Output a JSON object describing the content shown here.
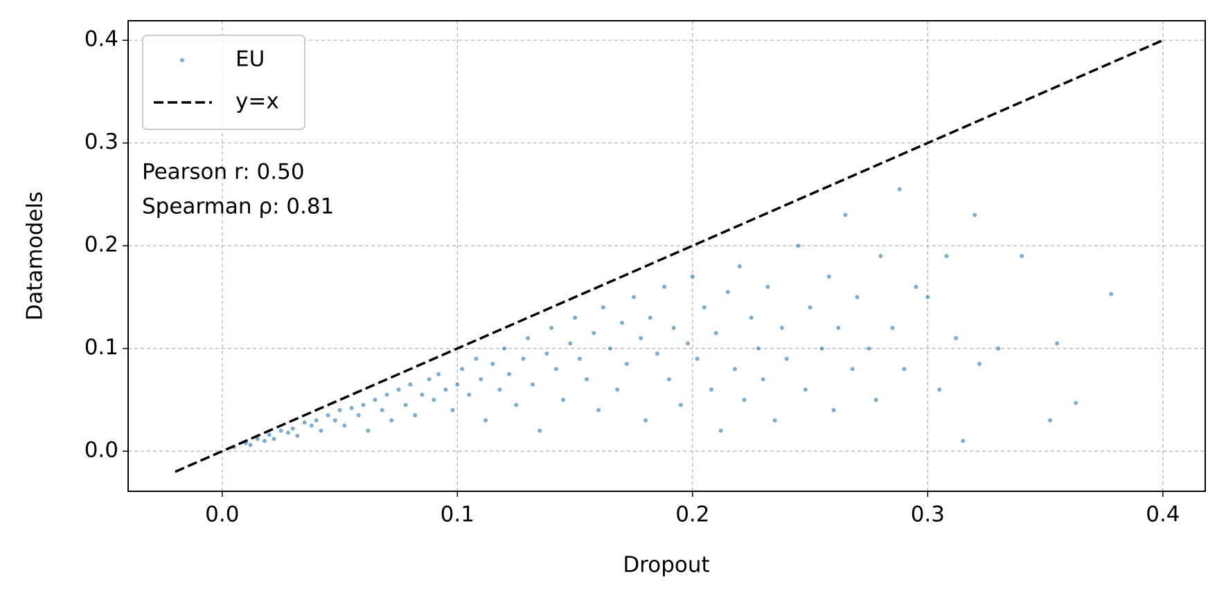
{
  "chart_data": {
    "type": "scatter",
    "x_label": "Dropout",
    "y_label": "Datamodels",
    "annotations": [
      "Pearson r: 0.50",
      "Spearman ρ: 0.81"
    ],
    "legend": "upper left",
    "grid": true,
    "xlim": [
      -0.04,
      0.418
    ],
    "ylim": [
      -0.039,
      0.419
    ],
    "xticks": [
      {
        "value": 0,
        "label": "0.0"
      },
      0.1,
      0.2,
      0.3,
      0.4
    ],
    "yticks": [
      {
        "value": 0,
        "label": "0.0"
      },
      0.1,
      0.2,
      0.3,
      0.4
    ],
    "reference_line": {
      "name": "y=x",
      "color": "#000000",
      "x": [
        -0.02,
        0.4
      ],
      "y": [
        -0.02,
        0.4
      ]
    },
    "series": [
      {
        "name": "EU",
        "color": "#1f77b4",
        "x": [
          0.005,
          0.01,
          0.012,
          0.015,
          0.018,
          0.02,
          0.022,
          0.025,
          0.028,
          0.03,
          0.032,
          0.035,
          0.038,
          0.04,
          0.042,
          0.045,
          0.048,
          0.05,
          0.052,
          0.055,
          0.058,
          0.06,
          0.062,
          0.065,
          0.068,
          0.07,
          0.072,
          0.075,
          0.078,
          0.08,
          0.082,
          0.085,
          0.088,
          0.09,
          0.092,
          0.095,
          0.098,
          0.1,
          0.102,
          0.105,
          0.108,
          0.11,
          0.112,
          0.115,
          0.118,
          0.12,
          0.122,
          0.125,
          0.128,
          0.13,
          0.132,
          0.135,
          0.138,
          0.14,
          0.142,
          0.145,
          0.148,
          0.15,
          0.152,
          0.155,
          0.158,
          0.16,
          0.162,
          0.165,
          0.168,
          0.17,
          0.172,
          0.175,
          0.178,
          0.18,
          0.182,
          0.185,
          0.188,
          0.19,
          0.192,
          0.195,
          0.198,
          0.2,
          0.202,
          0.205,
          0.208,
          0.21,
          0.212,
          0.215,
          0.218,
          0.22,
          0.222,
          0.225,
          0.228,
          0.23,
          0.232,
          0.235,
          0.238,
          0.24,
          0.245,
          0.248,
          0.25,
          0.255,
          0.258,
          0.26,
          0.262,
          0.265,
          0.268,
          0.27,
          0.275,
          0.278,
          0.28,
          0.285,
          0.288,
          0.29,
          0.295,
          0.3,
          0.305,
          0.308,
          0.312,
          0.315,
          0.32,
          0.322,
          0.33,
          0.34,
          0.355,
          0.352,
          0.363,
          0.378
        ],
        "y": [
          0.004,
          0.008,
          0.006,
          0.012,
          0.01,
          0.016,
          0.012,
          0.02,
          0.018,
          0.022,
          0.015,
          0.028,
          0.025,
          0.03,
          0.02,
          0.035,
          0.03,
          0.04,
          0.025,
          0.042,
          0.035,
          0.045,
          0.02,
          0.05,
          0.04,
          0.055,
          0.03,
          0.06,
          0.045,
          0.065,
          0.035,
          0.055,
          0.07,
          0.05,
          0.075,
          0.06,
          0.04,
          0.065,
          0.08,
          0.055,
          0.09,
          0.07,
          0.03,
          0.085,
          0.06,
          0.1,
          0.075,
          0.045,
          0.09,
          0.11,
          0.065,
          0.02,
          0.095,
          0.12,
          0.08,
          0.05,
          0.105,
          0.13,
          0.09,
          0.07,
          0.115,
          0.04,
          0.14,
          0.1,
          0.06,
          0.125,
          0.085,
          0.15,
          0.11,
          0.03,
          0.13,
          0.095,
          0.16,
          0.07,
          0.12,
          0.045,
          0.105,
          0.17,
          0.09,
          0.14,
          0.06,
          0.115,
          0.02,
          0.155,
          0.08,
          0.18,
          0.05,
          0.13,
          0.1,
          0.07,
          0.16,
          0.03,
          0.12,
          0.09,
          0.2,
          0.06,
          0.14,
          0.1,
          0.17,
          0.04,
          0.12,
          0.23,
          0.08,
          0.15,
          0.1,
          0.05,
          0.19,
          0.12,
          0.255,
          0.08,
          0.16,
          0.15,
          0.06,
          0.19,
          0.11,
          0.01,
          0.23,
          0.085,
          0.1,
          0.19,
          0.105,
          0.03,
          0.047,
          0.153
        ]
      }
    ]
  }
}
